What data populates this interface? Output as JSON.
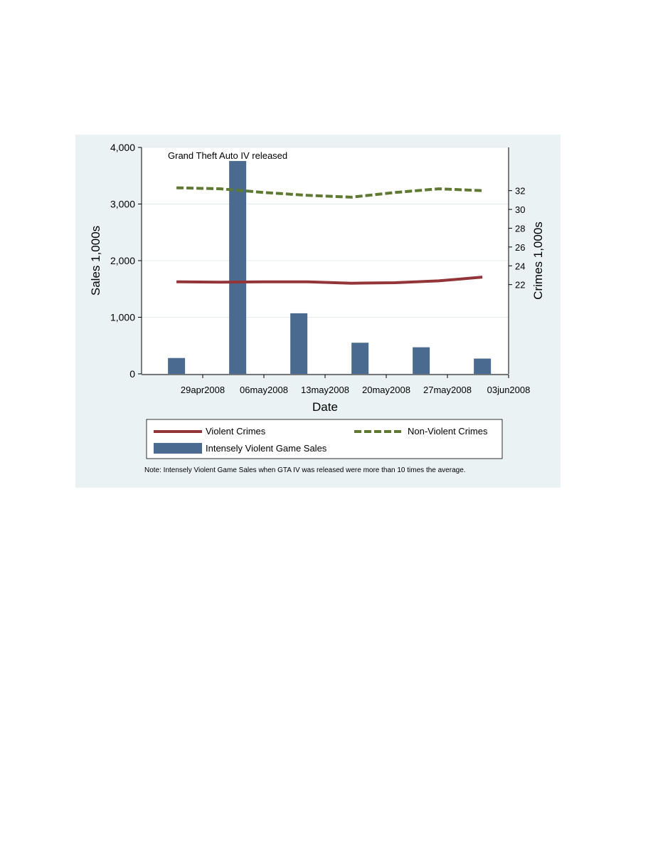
{
  "chart_data": {
    "type": "bar+line",
    "annotation": "Grand Theft Auto IV released",
    "xlabel": "Date",
    "ylabel_left": "Sales 1,000s",
    "ylabel_right": "Crimes 1,000s",
    "x_ticks": [
      "29apr2008",
      "06may2008",
      "13may2008",
      "20may2008",
      "27may2008",
      "03jun2008"
    ],
    "x_range": [
      "2008-04-22",
      "2008-06-03"
    ],
    "y_left": {
      "range": [
        0,
        4000
      ],
      "ticks": [
        0,
        1000,
        2000,
        3000,
        4000
      ],
      "tick_labels": [
        "0",
        "1,000",
        "2,000",
        "3,000",
        "4,000"
      ]
    },
    "y_right": {
      "range": [
        12.5,
        36.6
      ],
      "ticks": [
        22,
        24,
        26,
        28,
        30,
        32
      ],
      "tick_labels": [
        "22",
        "24",
        "26",
        "28",
        "30",
        "32"
      ]
    },
    "bars": {
      "name": "Intensely Violent Game Sales",
      "color": "#4a6a8f",
      "x": [
        "2008-04-26",
        "2008-05-03",
        "2008-05-10",
        "2008-05-17",
        "2008-05-24",
        "2008-05-31"
      ],
      "values": [
        280,
        3760,
        1070,
        550,
        470,
        270
      ]
    },
    "lines": [
      {
        "name": "Violent Crimes",
        "color": "#933538",
        "dash": "solid",
        "x": [
          "2008-04-26",
          "2008-05-01",
          "2008-05-06",
          "2008-05-11",
          "2008-05-16",
          "2008-05-21",
          "2008-05-26",
          "2008-05-31"
        ],
        "values": [
          22.3,
          22.25,
          22.3,
          22.3,
          22.15,
          22.2,
          22.4,
          22.8
        ]
      },
      {
        "name": "Non-Violent Crimes",
        "color": "#5e7a32",
        "dash": "dashed",
        "x": [
          "2008-04-26",
          "2008-05-01",
          "2008-05-06",
          "2008-05-11",
          "2008-05-16",
          "2008-05-21",
          "2008-05-26",
          "2008-05-31"
        ],
        "values": [
          32.3,
          32.2,
          31.8,
          31.5,
          31.3,
          31.8,
          32.2,
          32
        ]
      }
    ],
    "legend": {
      "items": [
        "Violent Crimes",
        "Non-Violent Crimes",
        "Intensely Violent Game Sales"
      ],
      "position": "bottom"
    },
    "note": "Note: Intensely Violent Game Sales when GTA IV was released were more than 10 times the average."
  }
}
